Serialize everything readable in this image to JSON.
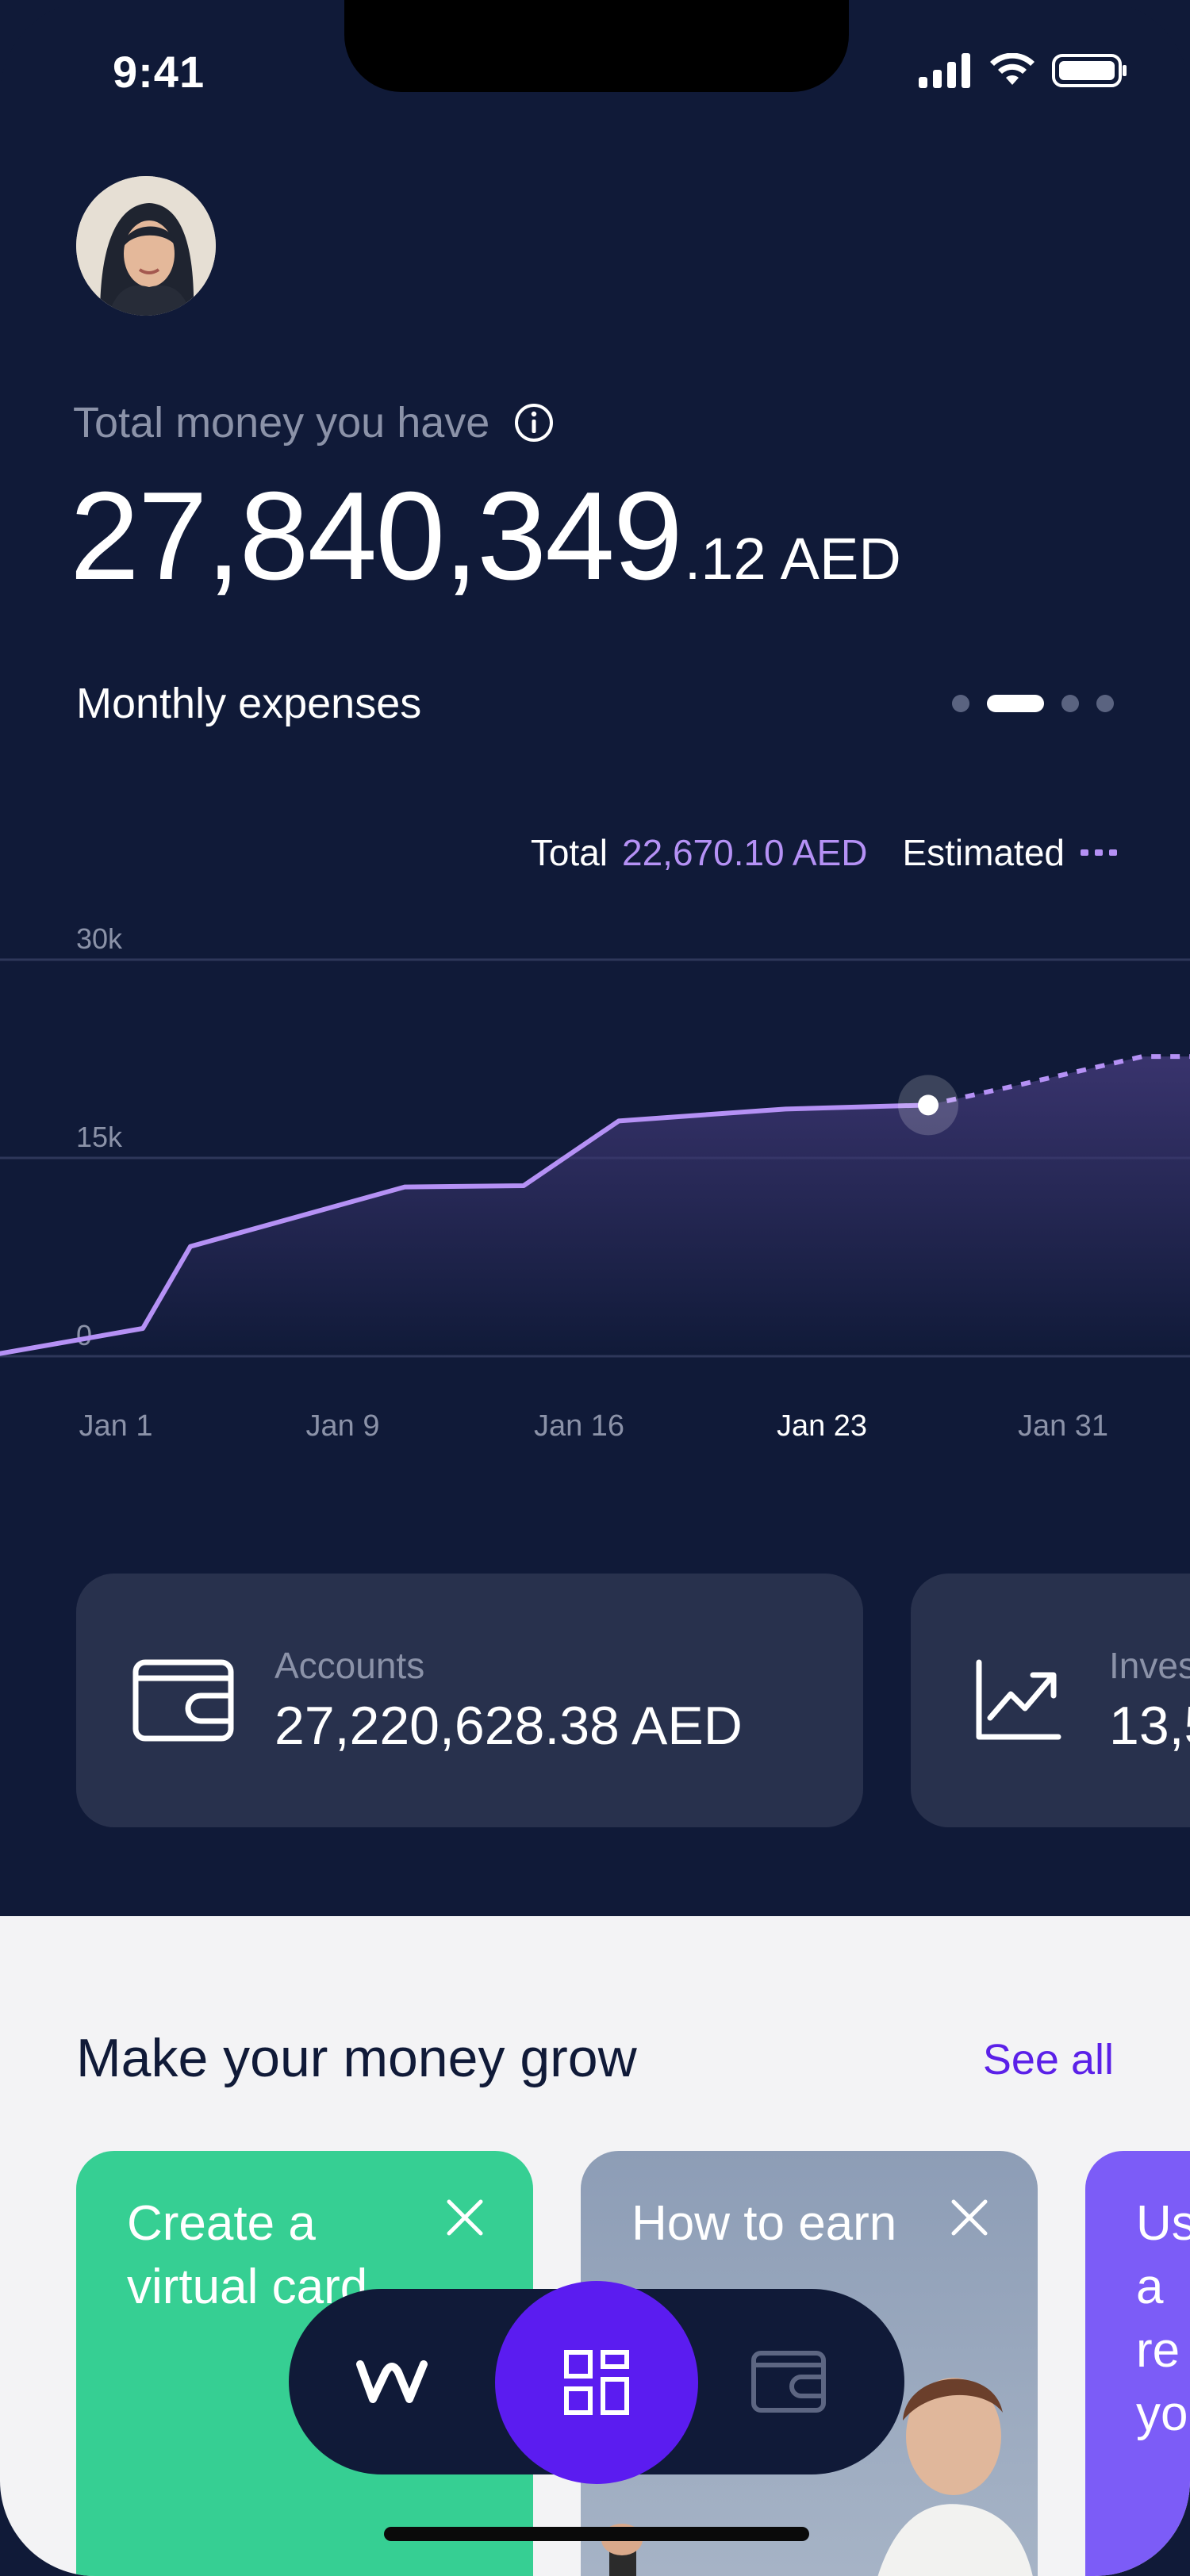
{
  "status": {
    "time": "9:41"
  },
  "balance": {
    "label": "Total money you have",
    "amount_int": "27,840,349",
    "amount_dec": ".12",
    "currency": "AED"
  },
  "expenses": {
    "title": "Monthly expenses",
    "pager_active_index": 1,
    "pager_count": 4,
    "total_label": "Total",
    "total_value": "22,670.10 AED",
    "estimated_label": "Estimated"
  },
  "chart_data": {
    "type": "line",
    "x_ticks": [
      "Jan 1",
      "Jan 9",
      "Jan 16",
      "Jan 23",
      "Jan 31"
    ],
    "highlighted_tick": "Jan 23",
    "y_ticks": [
      "30k",
      "15k",
      "0"
    ],
    "ylim": [
      0,
      30000
    ],
    "series": [
      {
        "values_x": [
          0,
          6,
          8,
          17,
          22,
          26,
          33,
          39
        ],
        "values_y": [
          200,
          2100,
          8300,
          12800,
          12900,
          17800,
          18700,
          19000
        ]
      }
    ],
    "estimated_series": {
      "values_x": [
        39,
        43,
        48,
        53
      ],
      "values_y": [
        19000,
        20600,
        22670,
        22670
      ]
    },
    "colors": {
      "line": "#b591f5",
      "grid": "#2e375a",
      "fill": "#3b3570"
    }
  },
  "cards": [
    {
      "label": "Accounts",
      "value": "27,220,628.38 AED",
      "icon": "wallet-icon"
    },
    {
      "label": "Inves",
      "value": "13,5",
      "icon": "chart-growth-icon"
    }
  ],
  "grow": {
    "title": "Make your money grow",
    "see_all": "See all",
    "promos": [
      {
        "title": "Create a virtual card"
      },
      {
        "title": "How to earn"
      },
      {
        "title": "Use a re you"
      }
    ]
  },
  "nav": {
    "items": [
      "home-logo-icon",
      "dashboard-icon",
      "wallet-icon"
    ],
    "active": "dashboard-icon"
  }
}
